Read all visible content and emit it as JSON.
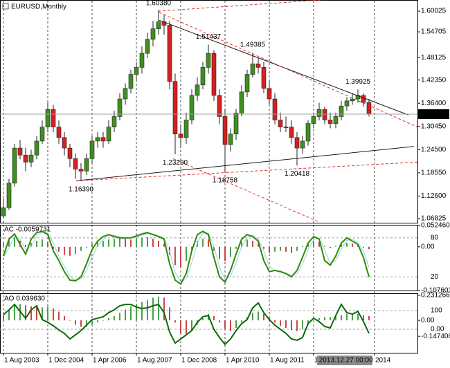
{
  "chart_data": [
    {
      "type": "candlestick",
      "title": "EURUSD,Monthly",
      "x": [
        0,
        1,
        2,
        3,
        4,
        5,
        6,
        7,
        8,
        9,
        10,
        11,
        12,
        13,
        14,
        15,
        16,
        17,
        18,
        19,
        20,
        21,
        22,
        23,
        24,
        25,
        26,
        27,
        28,
        29,
        30,
        31,
        32,
        33,
        34,
        35,
        36,
        37,
        38,
        39,
        40,
        41,
        42,
        43,
        44,
        45,
        46,
        47,
        48,
        49,
        50,
        51,
        52,
        53,
        54,
        55,
        56,
        57,
        58,
        59,
        60,
        61,
        62,
        63,
        64,
        65,
        66
      ],
      "candles": [
        [
          1.075,
          1.12,
          1.07,
          1.096
        ],
        [
          1.096,
          1.17,
          1.09,
          1.159
        ],
        [
          1.159,
          1.26,
          1.15,
          1.249
        ],
        [
          1.249,
          1.27,
          1.22,
          1.231
        ],
        [
          1.231,
          1.25,
          1.19,
          1.213
        ],
        [
          1.213,
          1.245,
          1.2,
          1.231
        ],
        [
          1.231,
          1.28,
          1.22,
          1.267
        ],
        [
          1.267,
          1.32,
          1.26,
          1.303
        ],
        [
          1.303,
          1.366,
          1.29,
          1.348
        ],
        [
          1.348,
          1.36,
          1.29,
          1.303
        ],
        [
          1.303,
          1.32,
          1.26,
          1.276
        ],
        [
          1.276,
          1.29,
          1.23,
          1.249
        ],
        [
          1.249,
          1.26,
          1.2,
          1.222
        ],
        [
          1.222,
          1.235,
          1.17,
          1.195
        ],
        [
          1.195,
          1.21,
          1.1639,
          1.19
        ],
        [
          1.19,
          1.235,
          1.18,
          1.222
        ],
        [
          1.222,
          1.28,
          1.21,
          1.267
        ],
        [
          1.267,
          1.29,
          1.25,
          1.276
        ],
        [
          1.276,
          1.29,
          1.25,
          1.267
        ],
        [
          1.267,
          1.32,
          1.26,
          1.303
        ],
        [
          1.303,
          1.345,
          1.29,
          1.33
        ],
        [
          1.33,
          1.39,
          1.32,
          1.375
        ],
        [
          1.375,
          1.415,
          1.36,
          1.402
        ],
        [
          1.402,
          1.45,
          1.39,
          1.438
        ],
        [
          1.438,
          1.47,
          1.42,
          1.456
        ],
        [
          1.456,
          1.51,
          1.44,
          1.492
        ],
        [
          1.492,
          1.545,
          1.48,
          1.528
        ],
        [
          1.528,
          1.575,
          1.51,
          1.555
        ],
        [
          1.555,
          1.6038,
          1.54,
          1.573
        ],
        [
          1.573,
          1.59,
          1.54,
          1.564
        ],
        [
          1.564,
          1.575,
          1.4,
          1.42
        ],
        [
          1.42,
          1.44,
          1.2329,
          1.285
        ],
        [
          1.285,
          1.31,
          1.25,
          1.276
        ],
        [
          1.276,
          1.34,
          1.26,
          1.321
        ],
        [
          1.321,
          1.4,
          1.31,
          1.384
        ],
        [
          1.384,
          1.43,
          1.37,
          1.411
        ],
        [
          1.411,
          1.47,
          1.4,
          1.456
        ],
        [
          1.456,
          1.51437,
          1.44,
          1.492
        ],
        [
          1.492,
          1.5,
          1.37,
          1.384
        ],
        [
          1.384,
          1.4,
          1.31,
          1.33
        ],
        [
          1.33,
          1.35,
          1.18758,
          1.258
        ],
        [
          1.258,
          1.3,
          1.24,
          1.285
        ],
        [
          1.285,
          1.35,
          1.27,
          1.339
        ],
        [
          1.339,
          1.41,
          1.33,
          1.393
        ],
        [
          1.393,
          1.45,
          1.38,
          1.438
        ],
        [
          1.438,
          1.49385,
          1.43,
          1.465
        ],
        [
          1.465,
          1.48,
          1.44,
          1.456
        ],
        [
          1.456,
          1.47,
          1.39,
          1.402
        ],
        [
          1.402,
          1.42,
          1.36,
          1.375
        ],
        [
          1.375,
          1.39,
          1.31,
          1.321
        ],
        [
          1.321,
          1.34,
          1.29,
          1.303
        ],
        [
          1.303,
          1.33,
          1.29,
          1.303
        ],
        [
          1.303,
          1.32,
          1.26,
          1.276
        ],
        [
          1.276,
          1.29,
          1.20418,
          1.249
        ],
        [
          1.249,
          1.28,
          1.235,
          1.267
        ],
        [
          1.267,
          1.32,
          1.255,
          1.312
        ],
        [
          1.312,
          1.34,
          1.3,
          1.33
        ],
        [
          1.33,
          1.365,
          1.32,
          1.348
        ],
        [
          1.348,
          1.355,
          1.31,
          1.321
        ],
        [
          1.321,
          1.34,
          1.3,
          1.312
        ],
        [
          1.312,
          1.34,
          1.3,
          1.33
        ],
        [
          1.33,
          1.37,
          1.32,
          1.357
        ],
        [
          1.357,
          1.38,
          1.345,
          1.37
        ],
        [
          1.37,
          1.39,
          1.36,
          1.375
        ],
        [
          1.375,
          1.39925,
          1.365,
          1.384
        ],
        [
          1.384,
          1.39,
          1.355,
          1.366
        ],
        [
          1.366,
          1.375,
          1.33,
          1.336
        ]
      ],
      "up_color": "#3f8f1f",
      "down_color": "#d42020",
      "xlim": [
        -0.625,
        74.75
      ],
      "xticks": [
        {
          "value": 0,
          "label": "1 Aug 2003"
        },
        {
          "value": 8,
          "label": "1 Dec 2004"
        },
        {
          "value": 16,
          "label": "1 Apr 2006"
        },
        {
          "value": 24,
          "label": "1 Aug 2007"
        },
        {
          "value": 32,
          "label": "1 Dec 2008"
        },
        {
          "value": 40,
          "label": "1 Apr 2010"
        },
        {
          "value": 48,
          "label": "1 Aug 2011"
        },
        {
          "value": 56,
          "label": "1"
        },
        {
          "value": 67,
          "label": "2014"
        }
      ],
      "cursor": {
        "value": 56.6,
        "label": "2013.12.27 00:00"
      },
      "ylim": [
        1.0575,
        1.627
      ],
      "yticks": [
        1.60025,
        1.54705,
        1.48125,
        {
          "value": 1.4235,
          "label": "1.42350"
        },
        {
          "value": 1.364,
          "label": "1.36400"
        },
        {
          "value": 1.3045,
          "label": "1.30450"
        },
        {
          "value": 1.245,
          "label": "1.24500"
        },
        {
          "value": 1.1855,
          "label": "1.18550"
        },
        {
          "value": 1.126,
          "label": "1.12600"
        },
        1.06825
      ],
      "last_price": {
        "value": 1.33607,
        "label": "1.33607"
      },
      "annotations": [
        {
          "x": 28,
          "value": 1.6038,
          "label": "1.60380",
          "pos": "above"
        },
        {
          "x": 37,
          "value": 1.51437,
          "pos": "above"
        },
        {
          "x": 45,
          "value": 1.49385,
          "pos": "above"
        },
        {
          "x": 64,
          "value": 1.39925,
          "pos": "above"
        },
        {
          "x": 14,
          "value": 1.1639,
          "label": "1.16390",
          "pos": "below"
        },
        {
          "x": 31,
          "value": 1.2329,
          "label": "1.23290",
          "pos": "below"
        },
        {
          "x": 40,
          "value": 1.18758,
          "pos": "below"
        },
        {
          "x": 53,
          "value": 1.20418,
          "pos": "below"
        }
      ],
      "trendlines": [
        {
          "color": "#1a1a1a",
          "dash": false,
          "points": [
            [
              13.1,
              1.165
            ],
            [
              74.1,
              1.253
            ]
          ]
        },
        {
          "color": "#1a1a1a",
          "dash": false,
          "points": [
            [
              28.1,
              1.577
            ],
            [
              73.1,
              1.334
            ]
          ]
        },
        {
          "color": "#e03030",
          "dash": true,
          "points": [
            [
              27.9,
              1.6
            ],
            [
              59.4,
              1.631
            ]
          ]
        },
        {
          "color": "#e03030",
          "dash": true,
          "points": [
            [
              28.1,
              1.597
            ],
            [
              74.75,
              1.303
            ]
          ]
        },
        {
          "color": "#e03030",
          "dash": true,
          "points": [
            [
              13.1,
              1.165
            ],
            [
              74.75,
              1.213
            ]
          ]
        },
        {
          "color": "#e03030",
          "dash": true,
          "points": [
            [
              30.6,
              1.222
            ],
            [
              56.9,
              1.06
            ]
          ]
        }
      ]
    },
    {
      "type": "bar",
      "title": "AC -0.0059731",
      "values": [
        0.01,
        0.02,
        0.025,
        0.015,
        0.005,
        0.01,
        0.015,
        0.018,
        0.012,
        -0.005,
        -0.012,
        -0.02,
        -0.022,
        -0.018,
        -0.01,
        -0.002,
        0.008,
        0.012,
        0.015,
        0.018,
        0.02,
        0.022,
        0.02,
        0.018,
        0.02,
        0.022,
        0.024,
        0.02,
        0.015,
        0.008,
        -0.02,
        -0.045,
        -0.05,
        -0.035,
        -0.01,
        0.015,
        0.02,
        0.018,
        -0.01,
        -0.03,
        -0.035,
        -0.025,
        -0.005,
        0.012,
        0.018,
        0.015,
        0.008,
        -0.005,
        -0.015,
        -0.012,
        -0.01,
        -0.012,
        -0.015,
        -0.01,
        0.002,
        0.01,
        0.015,
        0.012,
        0.002,
        -0.003,
        0.002,
        0.006,
        0.01,
        0.008,
        0.005,
        -0.002,
        -0.006
      ],
      "up_color": "#1f8a1f",
      "down_color": "#c01818",
      "ylim": [
        -0.1076,
        0.05246
      ],
      "yticks": [
        {
          "value": 0.05246,
          "label": "0.052460"
        },
        {
          "value": 0,
          "label": "0.00"
        },
        {
          "value": -0.107603,
          "label": "-0.107603"
        }
      ],
      "y2lim": [
        -1,
        99
      ],
      "y2ticks": [
        80,
        20
      ],
      "lines": [
        {
          "color": "#8fd3ef",
          "width": 1,
          "axis": "y2",
          "values": [
            50,
            65,
            82,
            78,
            62,
            66,
            83,
            89,
            88,
            72,
            52,
            36,
            21,
            14,
            17,
            30,
            51,
            68,
            78,
            84,
            84,
            81,
            80,
            80,
            81,
            84,
            87,
            86,
            83,
            80,
            59,
            27,
            12,
            17,
            42,
            72,
            87,
            88,
            67,
            35,
            16,
            21,
            42,
            66,
            81,
            84,
            78,
            60,
            36,
            29,
            29,
            26,
            22,
            25,
            40,
            61,
            77,
            80,
            61,
            41,
            45,
            62,
            76,
            78,
            72,
            60,
            35
          ]
        },
        {
          "color": "#2f8a00",
          "width": 2,
          "axis": "y2",
          "values": [
            52,
            78,
            86,
            70,
            55,
            78,
            88,
            90,
            85,
            60,
            45,
            28,
            15,
            14,
            20,
            40,
            62,
            75,
            82,
            85,
            82,
            80,
            80,
            80,
            83,
            86,
            88,
            85,
            82,
            78,
            40,
            15,
            9,
            25,
            60,
            85,
            90,
            85,
            50,
            20,
            12,
            30,
            55,
            78,
            85,
            82,
            75,
            45,
            28,
            30,
            28,
            25,
            20,
            30,
            50,
            72,
            82,
            78,
            45,
            38,
            52,
            72,
            80,
            75,
            70,
            50,
            20
          ]
        }
      ]
    },
    {
      "type": "bar",
      "title": "AO 0.039630",
      "values": [
        0.05,
        0.1,
        0.14,
        0.15,
        0.14,
        0.13,
        0.12,
        0.12,
        0.13,
        0.11,
        0.08,
        0.04,
        0,
        -0.04,
        -0.06,
        -0.06,
        -0.04,
        -0.02,
        0,
        0.02,
        0.04,
        0.07,
        0.1,
        0.13,
        0.15,
        0.17,
        0.19,
        0.21,
        0.22,
        0.21,
        0.12,
        -0.02,
        -0.12,
        -0.13,
        -0.1,
        -0.04,
        0.02,
        0.06,
        0.04,
        -0.02,
        -0.08,
        -0.1,
        -0.07,
        -0.02,
        0.03,
        0.07,
        0.08,
        0.06,
        0.02,
        -0.02,
        -0.05,
        -0.07,
        -0.09,
        -0.1,
        -0.08,
        -0.04,
        0,
        0.02,
        0.03,
        0.03,
        0.04,
        0.05,
        0.06,
        0.06,
        0.06,
        0.05,
        0.04
      ],
      "up_color": "#1f8a1f",
      "down_color": "#c01818",
      "ylim": [
        -0.3,
        0.244
      ],
      "yticks": [
        {
          "value": 0.231266,
          "label": "0.231266"
        },
        {
          "value": 0,
          "label": "0.00"
        },
        {
          "value": -0.147406,
          "label": "-0.147406"
        }
      ],
      "y2lim": [
        -126,
        189
      ],
      "y2ticks": [
        100,
        {
          "value": 0,
          "label": "0.00"
        }
      ],
      "lines": [
        {
          "color": "#0a6a0a",
          "width": 2,
          "axis": "y2",
          "values": [
            78,
            104,
            133,
            96,
            59,
            104,
            126,
            52,
            37,
            19,
            -4,
            -22,
            -52,
            -30,
            -7,
            22,
            52,
            59,
            67,
            89,
            104,
            126,
            133,
            133,
            119,
            111,
            115,
            126,
            133,
            89,
            -15,
            -74,
            -52,
            -30,
            -7,
            37,
            67,
            74,
            0,
            -44,
            -81,
            -52,
            -7,
            30,
            52,
            115,
            141,
            89,
            52,
            22,
            0,
            -22,
            -52,
            -59,
            -44,
            30,
            59,
            41,
            15,
            7,
            74,
            133,
            89,
            81,
            96,
            41,
            -22
          ]
        }
      ]
    }
  ]
}
